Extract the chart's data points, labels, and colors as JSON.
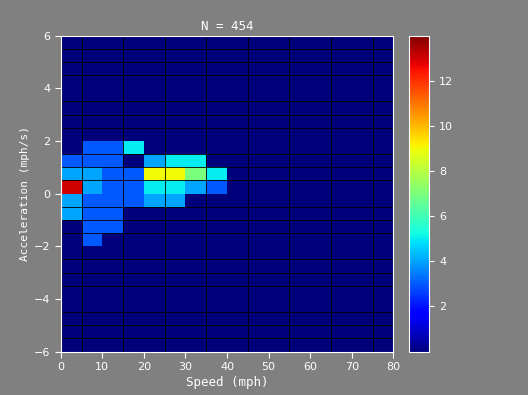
{
  "title": "N = 454",
  "xlabel": "Speed (mph)",
  "ylabel": "Acceleration (mph/s)",
  "xlim": [
    0,
    80
  ],
  "ylim": [
    -6,
    6
  ],
  "xticks": [
    0,
    10,
    20,
    30,
    40,
    50,
    60,
    70,
    80
  ],
  "yticks": [
    -6,
    -4,
    -2,
    0,
    2,
    4,
    6
  ],
  "colorbar_ticks": [
    2,
    4,
    6,
    8,
    10,
    12
  ],
  "vmax": 14,
  "background_color": "#808080",
  "ax_bgcolor": "#00008B",
  "cells": [
    {
      "s": 0,
      "a": 0.0,
      "v": 13
    },
    {
      "s": 0,
      "a": 0.5,
      "v": 4
    },
    {
      "s": 0,
      "a": -0.5,
      "v": 4
    },
    {
      "s": 0,
      "a": 1.0,
      "v": 3
    },
    {
      "s": 0,
      "a": -1.0,
      "v": 4
    },
    {
      "s": 5,
      "a": 0.0,
      "v": 4
    },
    {
      "s": 5,
      "a": 0.5,
      "v": 4
    },
    {
      "s": 5,
      "a": -0.5,
      "v": 3
    },
    {
      "s": 5,
      "a": 1.0,
      "v": 3
    },
    {
      "s": 5,
      "a": -1.0,
      "v": 3
    },
    {
      "s": 5,
      "a": 1.5,
      "v": 3
    },
    {
      "s": 5,
      "a": -1.5,
      "v": 3
    },
    {
      "s": 5,
      "a": -2.0,
      "v": 3
    },
    {
      "s": 10,
      "a": 0.0,
      "v": 3
    },
    {
      "s": 10,
      "a": 0.5,
      "v": 3
    },
    {
      "s": 10,
      "a": -0.5,
      "v": 3
    },
    {
      "s": 10,
      "a": 1.0,
      "v": 3
    },
    {
      "s": 10,
      "a": -1.0,
      "v": 3
    },
    {
      "s": 10,
      "a": 1.5,
      "v": 3
    },
    {
      "s": 10,
      "a": -1.5,
      "v": 3
    },
    {
      "s": 15,
      "a": 0.0,
      "v": 3
    },
    {
      "s": 15,
      "a": 0.5,
      "v": 3
    },
    {
      "s": 15,
      "a": -0.5,
      "v": 3
    },
    {
      "s": 15,
      "a": 1.5,
      "v": 5
    },
    {
      "s": 20,
      "a": 0.5,
      "v": 9
    },
    {
      "s": 20,
      "a": 1.0,
      "v": 4
    },
    {
      "s": 20,
      "a": 0.0,
      "v": 5
    },
    {
      "s": 20,
      "a": -0.5,
      "v": 4
    },
    {
      "s": 25,
      "a": 0.5,
      "v": 9
    },
    {
      "s": 25,
      "a": 1.0,
      "v": 5
    },
    {
      "s": 25,
      "a": 0.0,
      "v": 5
    },
    {
      "s": 25,
      "a": -0.5,
      "v": 4
    },
    {
      "s": 30,
      "a": 0.5,
      "v": 7
    },
    {
      "s": 30,
      "a": 1.0,
      "v": 5
    },
    {
      "s": 30,
      "a": 0.0,
      "v": 4
    },
    {
      "s": 35,
      "a": 0.5,
      "v": 5
    },
    {
      "s": 35,
      "a": 0.0,
      "v": 3
    }
  ]
}
